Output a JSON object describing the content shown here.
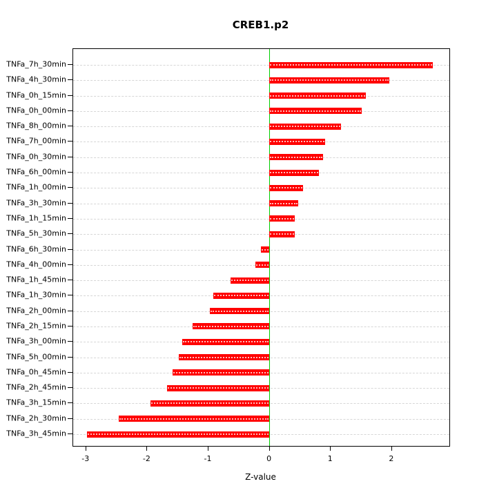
{
  "chart_data": {
    "type": "bar",
    "orientation": "horizontal",
    "title": "CREB1.p2",
    "xlabel": "Z-value",
    "ylabel": "",
    "xlim": [
      -3.2,
      2.95
    ],
    "xticks": [
      -3,
      -2,
      -1,
      0,
      1,
      2
    ],
    "grid": true,
    "legend": "none",
    "bar_color": "#ff0000",
    "zero_line_color": "#00cd00",
    "grid_color": "#d6d6d6",
    "categories": [
      "TNFa_7h_30min",
      "TNFa_4h_30min",
      "TNFa_0h_15min",
      "TNFa_0h_00min",
      "TNFa_8h_00min",
      "TNFa_7h_00min",
      "TNFa_0h_30min",
      "TNFa_6h_00min",
      "TNFa_1h_00min",
      "TNFa_3h_30min",
      "TNFa_1h_15min",
      "TNFa_5h_30min",
      "TNFa_6h_30min",
      "TNFa_4h_00min",
      "TNFa_1h_45min",
      "TNFa_1h_30min",
      "TNFa_2h_00min",
      "TNFa_2h_15min",
      "TNFa_3h_00min",
      "TNFa_5h_00min",
      "TNFa_0h_45min",
      "TNFa_2h_45min",
      "TNFa_3h_15min",
      "TNFa_2h_30min",
      "TNFa_3h_45min"
    ],
    "values": [
      2.68,
      1.97,
      1.58,
      1.52,
      1.18,
      0.92,
      0.88,
      0.82,
      0.56,
      0.48,
      0.42,
      0.42,
      -0.13,
      -0.22,
      -0.63,
      -0.91,
      -0.97,
      -1.25,
      -1.42,
      -1.47,
      -1.58,
      -1.67,
      -1.94,
      -2.45,
      -2.97
    ]
  }
}
